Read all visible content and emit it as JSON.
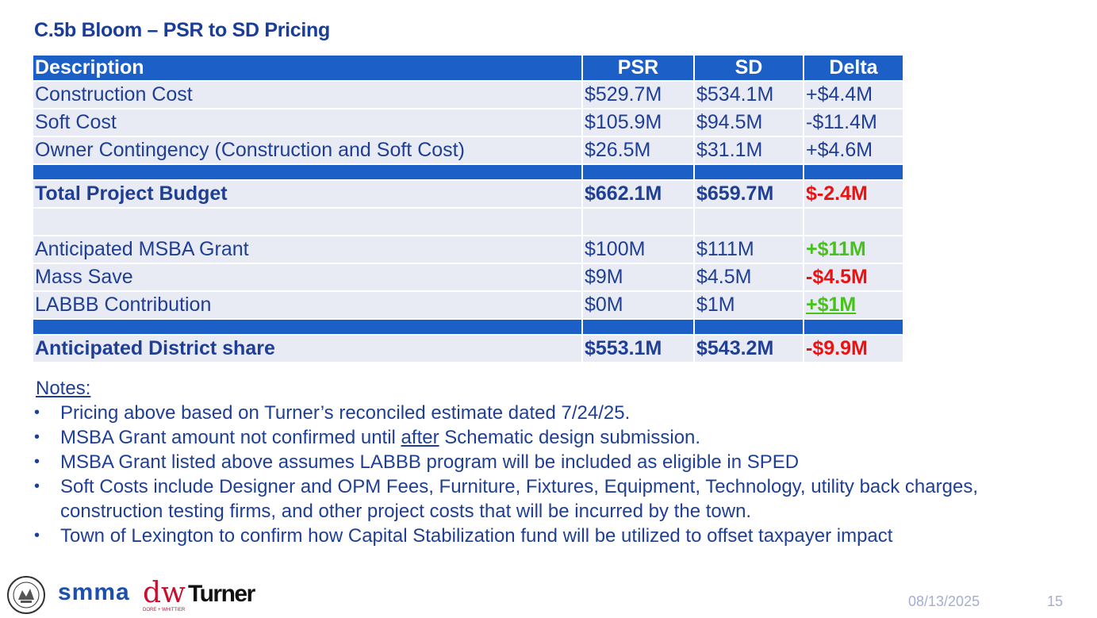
{
  "slide": {
    "title": "C.5b Bloom – PSR to SD Pricing",
    "date": "08/13/2025",
    "page_number": "15"
  },
  "table": {
    "headers": {
      "description": "Description",
      "psr": "PSR",
      "sd": "SD",
      "delta": "Delta"
    },
    "rows": [
      {
        "description": "Construction Cost",
        "psr": "$529.7M",
        "sd": "$534.1M",
        "delta": "+$4.4M"
      },
      {
        "description": "Soft Cost",
        "psr": "$105.9M",
        "sd": "$94.5M",
        "delta": "-$11.4M"
      },
      {
        "description": "Owner Contingency (Construction and Soft Cost)",
        "psr": "$26.5M",
        "sd": "$31.1M",
        "delta": "+$4.6M"
      },
      {
        "description": "Total Project Budget",
        "psr": "$662.1M",
        "sd": "$659.7M",
        "delta": "$-2.4M"
      },
      {
        "description": "Anticipated MSBA Grant",
        "psr": "$100M",
        "sd": "$111M",
        "delta": "+$11M"
      },
      {
        "description": "Mass Save",
        "psr": "$9M",
        "sd": "$4.5M",
        "delta": "-$4.5M"
      },
      {
        "description": "LABBB Contribution",
        "psr": "$0M",
        "sd": "$1M",
        "delta": "+$1M"
      },
      {
        "description": "Anticipated District share",
        "psr": "$553.1M",
        "sd": "$543.2M",
        "delta": "-$9.9M"
      }
    ]
  },
  "notes": {
    "heading": "Notes:",
    "items": [
      "Pricing above based on Turner’s reconciled estimate dated 7/24/25.",
      {
        "before": "MSBA Grant amount not confirmed until ",
        "emphasis": "after",
        "after": " Schematic design submission."
      },
      "MSBA Grant listed above assumes LABBB program will be included as eligible in SPED",
      "Soft Costs include Designer and OPM Fees, Furniture, Fixtures, Equipment, Technology, utility back charges, construction testing firms, and other project costs that will be incurred by the town.",
      "Town of Lexington to confirm how Capital Stabilization fund will be utilized to offset taxpayer impact"
    ]
  },
  "logos": {
    "seal": "town-seal-logo",
    "smma": "smma",
    "dw": "dw",
    "dw_subtitle": "DORE + WHITTIER",
    "turner": "Turner"
  },
  "colors": {
    "header_blue": "#1c5fc6",
    "row_fill": "#e8eaf4",
    "text_navy": "#1f3f95",
    "negative_red": "#ee1111",
    "positive_green": "#46c21a"
  }
}
